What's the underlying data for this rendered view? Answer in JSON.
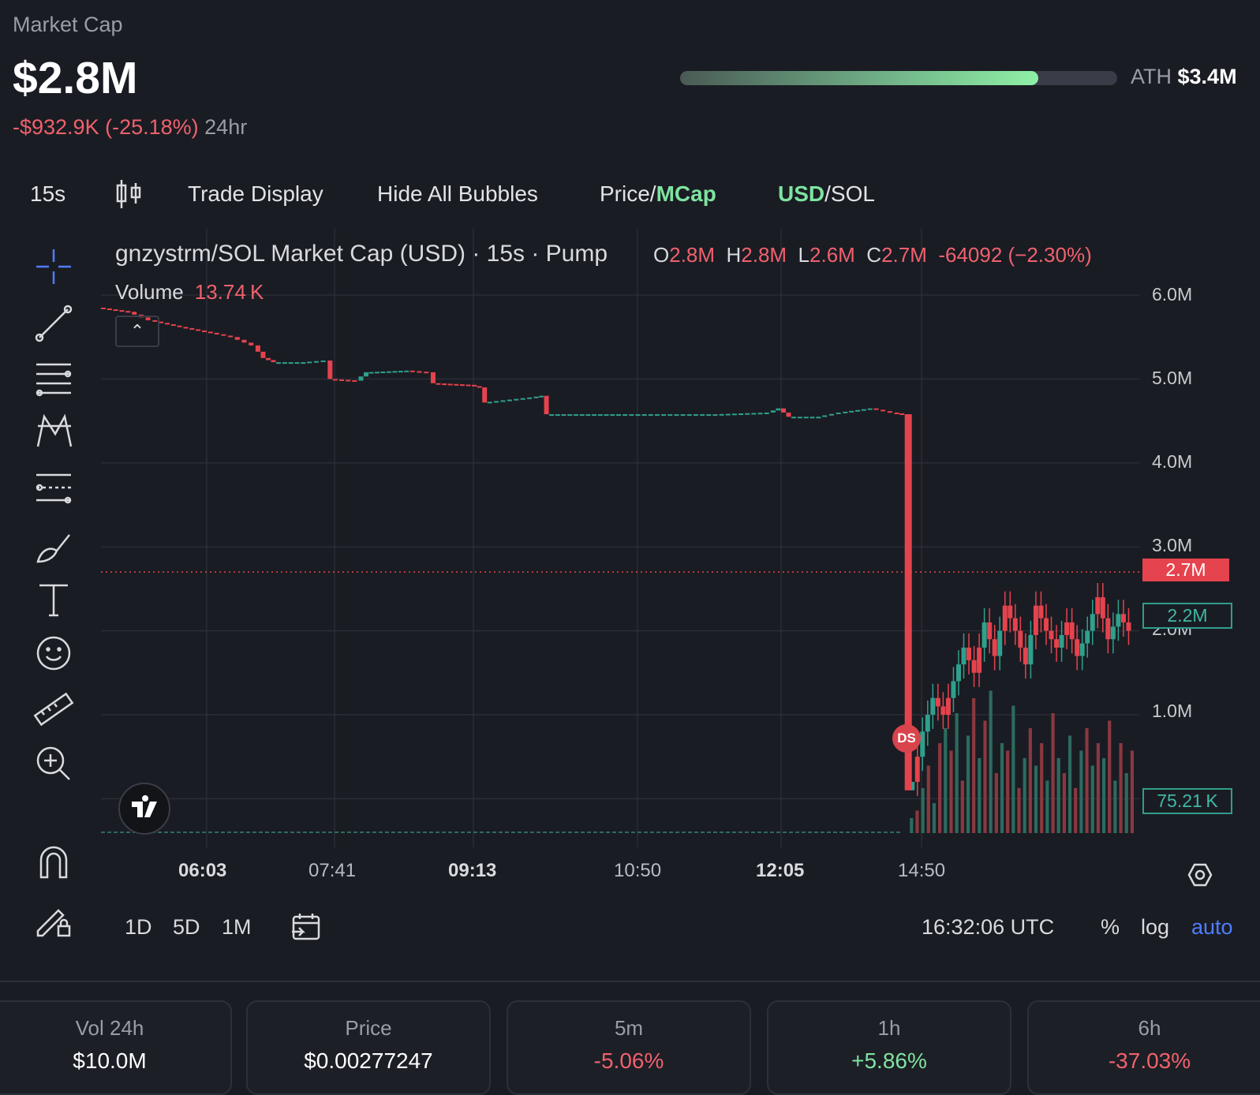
{
  "header": {
    "market_cap_label": "Market Cap",
    "market_cap_value": "$2.8M",
    "change_value": "-$932.9K (-25.18%)",
    "change_period": "24hr",
    "ath_label": "ATH",
    "ath_value": "$3.4M",
    "ath_progress": 0.82
  },
  "toolbar": {
    "interval": "15s",
    "candle_icon": "candlestick-icon",
    "trade_display": "Trade Display",
    "hide_bubbles": "Hide All Bubbles",
    "price_label": "Price/",
    "mcap_label": "MCap",
    "usd_label": "USD",
    "sol_label": "/SOL"
  },
  "legend": {
    "title": "gnzystrm/SOL Market Cap (USD) · 15s · Pump",
    "o_label": "O",
    "o_value": "2.8M",
    "h_label": "H",
    "h_value": "2.8M",
    "l_label": "L",
    "l_value": "2.6M",
    "c_label": "C",
    "c_value": "2.7M",
    "delta": "-64092 (−2.30%)",
    "volume_label": "Volume",
    "volume_value": "13.74 K"
  },
  "side_tools": [
    "crosshair-icon",
    "trendline-icon",
    "fib-lines-icon",
    "pattern-icon",
    "projection-icon",
    "brush-icon",
    "text-icon",
    "emoji-icon",
    "ruler-icon",
    "zoom-in-icon",
    "magnet-icon",
    "lock-drawing-icon"
  ],
  "chart_data": {
    "type": "candlestick",
    "title": "gnzystrm/SOL Market Cap (USD) · 15s · Pump",
    "y_ticks": [
      "6.0M",
      "5.0M",
      "4.0M",
      "3.0M",
      "2.0M",
      "1.0M"
    ],
    "x_ticks": [
      "06:03",
      "07:41",
      "09:13",
      "10:50",
      "12:05",
      "14:50"
    ],
    "bold_x_ticks": [
      "06:03",
      "09:13",
      "12:05"
    ],
    "ylim": [
      0,
      6.4
    ],
    "y_unit": "M",
    "last_price_label": "2.7M",
    "last_price": 2.7,
    "secondary_label": "2.2M",
    "volume_label": "75.21 K",
    "marker": "DS",
    "grid": true,
    "price_path": [
      [
        0,
        5.85
      ],
      [
        3,
        5.8
      ],
      [
        5,
        5.7
      ],
      [
        8,
        5.62
      ],
      [
        11,
        5.55
      ],
      [
        13,
        5.5
      ],
      [
        15,
        5.4
      ],
      [
        16,
        5.25
      ],
      [
        17,
        5.2
      ],
      [
        20,
        5.2
      ],
      [
        22,
        5.22
      ],
      [
        22.5,
        5.0
      ],
      [
        25,
        4.98
      ],
      [
        26,
        5.08
      ],
      [
        30,
        5.1
      ],
      [
        32,
        5.08
      ],
      [
        32.5,
        4.95
      ],
      [
        36,
        4.93
      ],
      [
        37,
        4.9
      ],
      [
        37.5,
        4.72
      ],
      [
        42,
        4.78
      ],
      [
        43,
        4.8
      ],
      [
        43.5,
        4.58
      ],
      [
        50,
        4.58
      ],
      [
        55,
        4.58
      ],
      [
        60,
        4.58
      ],
      [
        65,
        4.6
      ],
      [
        66,
        4.65
      ],
      [
        67,
        4.55
      ],
      [
        70,
        4.55
      ],
      [
        72,
        4.6
      ],
      [
        75,
        4.65
      ],
      [
        77,
        4.6
      ],
      [
        78,
        4.58
      ],
      [
        78.5,
        0.1
      ],
      [
        79,
        0.2
      ],
      [
        80,
        0.8
      ],
      [
        81,
        1.2
      ],
      [
        82,
        1.0
      ],
      [
        83,
        1.4
      ],
      [
        84,
        1.8
      ],
      [
        85,
        1.5
      ],
      [
        86,
        2.1
      ],
      [
        87,
        1.7
      ],
      [
        88,
        2.3
      ],
      [
        89,
        2.0
      ],
      [
        90,
        1.6
      ],
      [
        91,
        2.3
      ],
      [
        92,
        2.0
      ],
      [
        93,
        1.8
      ],
      [
        94,
        2.1
      ],
      [
        95,
        1.7
      ],
      [
        96,
        2.0
      ],
      [
        97,
        2.4
      ],
      [
        98,
        1.9
      ],
      [
        99,
        2.2
      ],
      [
        100,
        2.0
      ]
    ],
    "volume_bars": [
      0.1,
      0.15,
      0.3,
      0.45,
      0.2,
      0.6,
      0.7,
      0.55,
      0.8,
      0.35,
      0.65,
      0.9,
      0.5,
      0.75,
      0.95,
      0.4,
      0.6,
      0.55,
      0.85,
      0.3,
      0.5,
      0.7,
      0.45,
      0.6,
      0.35,
      0.8,
      0.5,
      0.4,
      0.65,
      0.3,
      0.55,
      0.7,
      0.45,
      0.6,
      0.5,
      0.75,
      0.35,
      0.6,
      0.4,
      0.55
    ]
  },
  "bottom_bar": {
    "ranges": [
      "1D",
      "5D",
      "1M"
    ],
    "time": "16:32:06 UTC",
    "percent": "%",
    "log": "log",
    "auto": "auto"
  },
  "stats": [
    {
      "label": "Vol 24h",
      "value": "$10.0M",
      "color": "#ffffff"
    },
    {
      "label": "Price",
      "value": "$0.00277247",
      "color": "#ffffff"
    },
    {
      "label": "5m",
      "value": "-5.06%",
      "color": "#f0616d"
    },
    {
      "label": "1h",
      "value": "+5.86%",
      "color": "#7ee3a0"
    },
    {
      "label": "6h",
      "value": "-37.03%",
      "color": "#f0616d"
    }
  ]
}
